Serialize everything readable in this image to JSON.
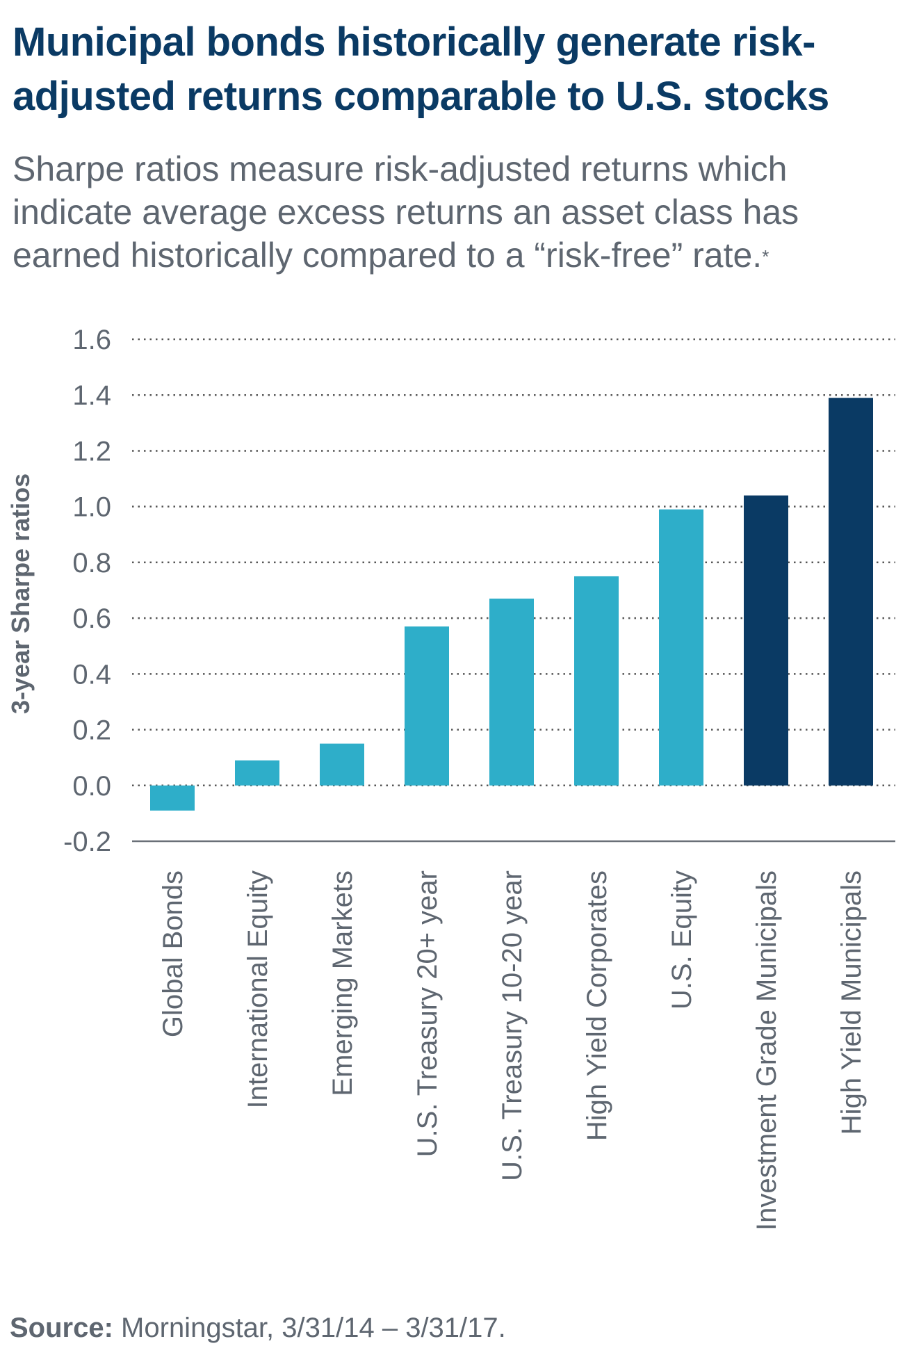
{
  "header": {
    "title": "Municipal bonds historically generate risk-adjusted returns comparable to U.S. stocks",
    "subtitle": "Sharpe ratios measure risk-adjusted returns which indicate average excess returns an asset class has earned historically compared to a “risk-free” rate.",
    "subtitle_mark": "*"
  },
  "footer": {
    "source_label": "Source:",
    "source_text": " Morningstar, 3/31/14 – 3/31/17."
  },
  "colors": {
    "light_bar": "#2eaec9",
    "dark_bar": "#0a3a64",
    "axis_text": "#5e6670",
    "ylabel_text": "#5e6670",
    "grid": "#555555"
  },
  "chart_data": {
    "type": "bar",
    "title": "",
    "xlabel": "",
    "ylabel": "3-year Sharpe ratios",
    "ylim": [
      -0.2,
      1.6
    ],
    "yticks": [
      "1.6",
      "1.4",
      "1.2",
      "1.0",
      "0.8",
      "0.6",
      "0.4",
      "0.2",
      "0.0",
      "-0.2"
    ],
    "grid": "horizontal dotted",
    "categories": [
      "Global Bonds",
      "International Equity",
      "Emerging Markets",
      "U.S. Treasury 20+ year",
      "U.S. Treasury 10-20 year",
      "High Yield Corporates",
      "U.S. Equity",
      "Investment Grade Municipals",
      "High Yield Municipals"
    ],
    "values": [
      -0.09,
      0.09,
      0.15,
      0.57,
      0.67,
      0.75,
      0.99,
      1.04,
      1.39
    ],
    "bar_color_groups": [
      "light",
      "light",
      "light",
      "light",
      "light",
      "light",
      "light",
      "dark",
      "dark"
    ]
  }
}
